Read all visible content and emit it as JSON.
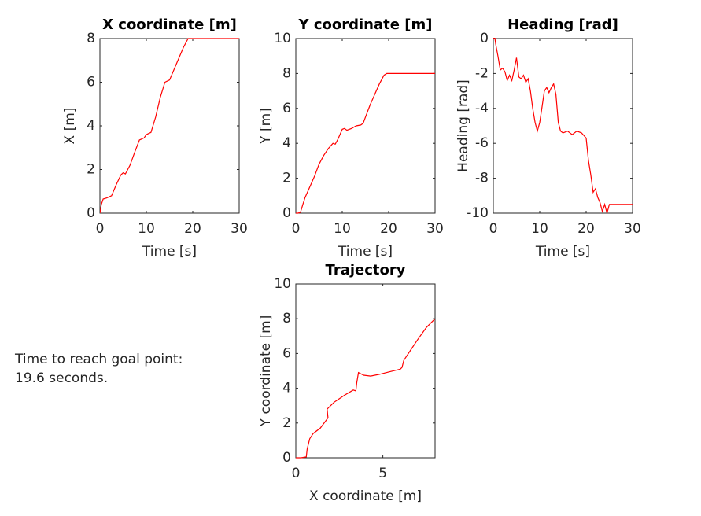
{
  "chart_data": [
    {
      "type": "line",
      "title": "X coordinate [m]",
      "x_label": "Time [s]",
      "y_label": "X [m]",
      "xlim": [
        0,
        30
      ],
      "xticks": [
        0,
        10,
        20,
        30
      ],
      "ylim": [
        0,
        8
      ],
      "yticks": [
        0,
        2,
        4,
        6,
        8
      ],
      "x": [
        0,
        0.3,
        0.7,
        1.5,
        2.5,
        3.5,
        4.5,
        5,
        5.5,
        6.5,
        7.5,
        8.5,
        9,
        9.5,
        10,
        10.5,
        11,
        12,
        13,
        14,
        14.5,
        15,
        16,
        17,
        18,
        19,
        19.6,
        30
      ],
      "series": [
        {
          "color": "#ff0000",
          "values": [
            0,
            0.4,
            0.65,
            0.7,
            0.8,
            1.3,
            1.75,
            1.85,
            1.8,
            2.2,
            2.8,
            3.35,
            3.4,
            3.45,
            3.6,
            3.65,
            3.7,
            4.4,
            5.3,
            6,
            6.05,
            6.1,
            6.6,
            7.1,
            7.6,
            8,
            8,
            8
          ]
        }
      ]
    },
    {
      "type": "line",
      "title": "Y coordinate [m]",
      "x_label": "Time [s]",
      "y_label": "Y [m]",
      "xlim": [
        0,
        30
      ],
      "xticks": [
        0,
        10,
        20,
        30
      ],
      "ylim": [
        0,
        10
      ],
      "yticks": [
        0,
        2,
        4,
        6,
        8,
        10
      ],
      "x": [
        0,
        0.5,
        1,
        1.5,
        2,
        3,
        4,
        5,
        6,
        7,
        8,
        8.5,
        9,
        9.5,
        10,
        10.5,
        11,
        12,
        13,
        14,
        14.5,
        15,
        16,
        17,
        18,
        19,
        19.6,
        30
      ],
      "series": [
        {
          "color": "#ff0000",
          "values": [
            0,
            0,
            0.05,
            0.5,
            0.9,
            1.5,
            2.1,
            2.8,
            3.3,
            3.7,
            4,
            3.95,
            4.2,
            4.5,
            4.8,
            4.85,
            4.75,
            4.85,
            5,
            5.05,
            5.15,
            5.5,
            6.2,
            6.8,
            7.4,
            7.9,
            8,
            8
          ]
        }
      ]
    },
    {
      "type": "line",
      "title": "Heading [rad]",
      "x_label": "Time [s]",
      "y_label": "Heading [rad]",
      "xlim": [
        0,
        30
      ],
      "xticks": [
        0,
        10,
        20,
        30
      ],
      "ylim": [
        -10,
        0
      ],
      "yticks": [
        -10,
        -8,
        -6,
        -4,
        -2,
        0
      ],
      "x": [
        0,
        0.3,
        0.5,
        1,
        1.5,
        2,
        2.5,
        3,
        3.5,
        4,
        4.5,
        5,
        5.5,
        6,
        6.5,
        7,
        7.5,
        8,
        8.5,
        9,
        9.5,
        10,
        10.5,
        11,
        11.5,
        12,
        12.5,
        13,
        13.5,
        14,
        14.5,
        15,
        16,
        17,
        18,
        19,
        20,
        20.5,
        21,
        21.5,
        22,
        22.5,
        23,
        23.5,
        24,
        24.5,
        25,
        26,
        30
      ],
      "series": [
        {
          "color": "#ff0000",
          "values": [
            0,
            0.1,
            -0.3,
            -1,
            -1.8,
            -1.7,
            -1.9,
            -2.4,
            -2.1,
            -2.4,
            -1.8,
            -1.1,
            -2.2,
            -2.3,
            -2.1,
            -2.5,
            -2.3,
            -3,
            -4,
            -4.8,
            -5.3,
            -4.8,
            -3.9,
            -3,
            -2.8,
            -3.1,
            -2.8,
            -2.6,
            -3.2,
            -4.8,
            -5.3,
            -5.4,
            -5.3,
            -5.5,
            -5.3,
            -5.4,
            -5.7,
            -7,
            -7.8,
            -8.8,
            -8.6,
            -9.1,
            -9.4,
            -9.9,
            -9.5,
            -10,
            -9.5,
            -9.5,
            -9.5
          ]
        }
      ]
    },
    {
      "type": "line",
      "title": "Trajectory",
      "x_label": "X coordinate [m]",
      "y_label": "Y coordinate [m]",
      "xlim": [
        0,
        8
      ],
      "xticks": [
        0,
        5
      ],
      "ylim": [
        0,
        10
      ],
      "yticks": [
        0,
        2,
        4,
        6,
        8,
        10
      ],
      "x": [
        0,
        0.3,
        0.6,
        0.65,
        0.8,
        1,
        1.4,
        1.7,
        1.85,
        1.8,
        2.2,
        2.8,
        3.3,
        3.45,
        3.5,
        3.6,
        3.9,
        4.3,
        4.8,
        5.4,
        6,
        6.1,
        6.2,
        6.6,
        7,
        7.5,
        8
      ],
      "series": [
        {
          "color": "#ff0000",
          "values": [
            0,
            0,
            0.05,
            0.5,
            1.1,
            1.4,
            1.7,
            2.1,
            2.3,
            2.8,
            3.2,
            3.6,
            3.9,
            3.85,
            4.3,
            4.9,
            4.75,
            4.7,
            4.8,
            4.95,
            5.1,
            5.2,
            5.6,
            6.2,
            6.8,
            7.5,
            8
          ]
        }
      ]
    }
  ],
  "annotation": [
    "Time to reach goal point:",
    "19.6 seconds."
  ]
}
